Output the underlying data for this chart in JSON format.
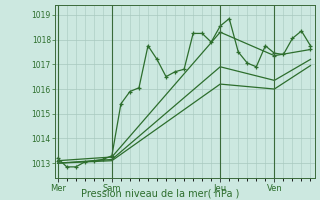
{
  "background_color": "#cce8e0",
  "grid_color": "#a8c8be",
  "line_color": "#2d6e2d",
  "ylabel_ticks": [
    1013,
    1014,
    1015,
    1016,
    1017,
    1018,
    1019
  ],
  "ylim": [
    1012.4,
    1019.4
  ],
  "xlim": [
    -0.3,
    28.5
  ],
  "xlabel": "Pression niveau de la mer( hPa )",
  "day_labels": [
    "Mer",
    "Sam",
    "Jeu",
    "Ven"
  ],
  "day_positions": [
    0,
    6,
    18,
    24
  ],
  "line1_x": [
    0,
    1,
    2,
    3,
    4,
    5,
    6,
    7,
    8,
    9,
    10,
    11,
    12,
    13,
    14,
    15,
    16,
    17,
    18,
    19,
    20,
    21,
    22,
    23,
    24,
    25,
    26,
    27,
    28
  ],
  "line1_y": [
    1013.2,
    1012.85,
    1012.85,
    1013.05,
    1013.1,
    1013.15,
    1013.3,
    1015.4,
    1015.9,
    1016.05,
    1017.75,
    1017.2,
    1016.5,
    1016.7,
    1016.8,
    1018.25,
    1018.25,
    1017.9,
    1018.55,
    1018.85,
    1017.5,
    1017.05,
    1016.9,
    1017.75,
    1017.45,
    1017.4,
    1018.05,
    1018.35,
    1017.75
  ],
  "line2_x": [
    0,
    6,
    18,
    24,
    28
  ],
  "line2_y": [
    1013.1,
    1013.25,
    1018.3,
    1017.35,
    1017.6
  ],
  "line3_x": [
    0,
    6,
    18,
    24,
    28
  ],
  "line3_y": [
    1013.0,
    1013.15,
    1016.9,
    1016.35,
    1017.2
  ],
  "line4_x": [
    0,
    6,
    18,
    24,
    28
  ],
  "line4_y": [
    1013.0,
    1013.1,
    1016.2,
    1016.0,
    1016.95
  ]
}
